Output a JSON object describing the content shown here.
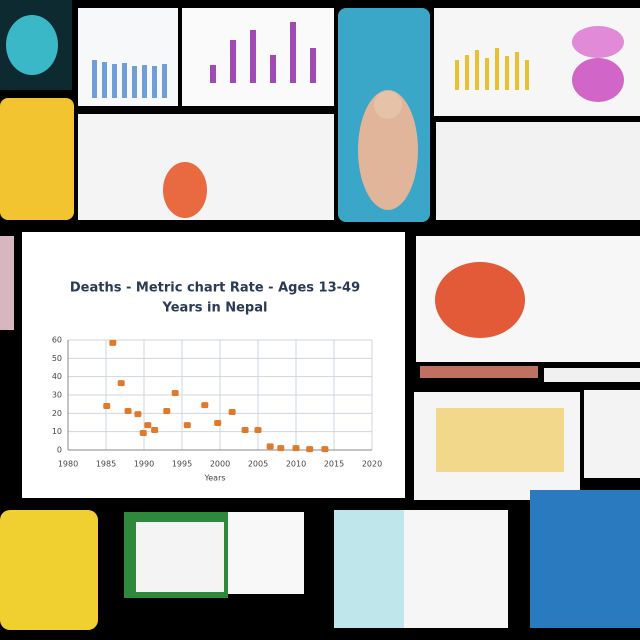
{
  "chart_data": {
    "type": "scatter",
    "title": "Deaths - Metric chart Rate - Ages 13-49",
    "subtitle": "Years in Nepal",
    "x_label": "Years",
    "color": "#e07a2a",
    "xlim": [
      1980,
      2020
    ],
    "xticks": [
      1980,
      1985,
      1990,
      1995,
      2000,
      2005,
      2010,
      2015,
      2020
    ],
    "ylim": [
      0,
      60
    ],
    "yticks": [
      0,
      10,
      20,
      30,
      40,
      50,
      60
    ],
    "grid": true,
    "x": [
      1985.9,
      1987,
      1985.1,
      1987.9,
      1989.2,
      1990.5,
      1991.4,
      1989.9,
      1994.1,
      1993,
      1995.7,
      1998,
      1999.7,
      2001.6,
      2003.3,
      2005,
      2006.6,
      2008,
      2010,
      2011.8,
      2013.8
    ],
    "values": [
      58.4,
      36.5,
      24,
      21.3,
      19.6,
      13.6,
      10.9,
      9.3,
      31.1,
      21.3,
      13.6,
      24.5,
      14.7,
      20.7,
      10.9,
      10.9,
      2,
      1,
      1,
      0.5,
      0.5
    ]
  }
}
